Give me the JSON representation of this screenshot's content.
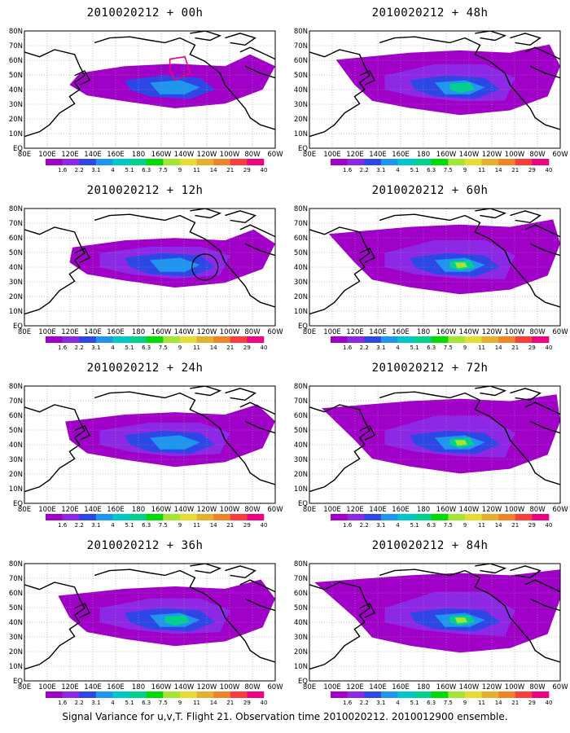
{
  "figure": {
    "caption": "Signal Variance for u,v,T. Flight 21. Observation time 2010020212. 2010012900 ensemble."
  },
  "axes": {
    "lon_labels": [
      "80E",
      "100E",
      "120E",
      "140E",
      "160E",
      "180",
      "160W",
      "140W",
      "120W",
      "100W",
      "80W",
      "60W"
    ],
    "lat_labels": [
      "EQ",
      "10N",
      "20N",
      "30N",
      "40N",
      "50N",
      "60N",
      "70N",
      "80N"
    ]
  },
  "colorbar": {
    "labels": [
      "1.6",
      "2.2",
      "3.1",
      "4",
      "5.1",
      "6.3",
      "7.5",
      "9",
      "11",
      "14",
      "21",
      "29",
      "40"
    ],
    "colors": [
      "#a000c8",
      "#8c28e6",
      "#2d47e6",
      "#1e96f0",
      "#00c8c8",
      "#00d28c",
      "#00dc00",
      "#a0e632",
      "#e6dc32",
      "#e6af2d",
      "#f08228",
      "#fa3c3c",
      "#f00082"
    ]
  },
  "panels": [
    {
      "id": "p00",
      "title": "2010020212 + 00h",
      "level": 0,
      "col": 0,
      "row": 0
    },
    {
      "id": "p12",
      "title": "2010020212 + 12h",
      "level": 1,
      "col": 0,
      "row": 1
    },
    {
      "id": "p24",
      "title": "2010020212 + 24h",
      "level": 2,
      "col": 0,
      "row": 2
    },
    {
      "id": "p36",
      "title": "2010020212 + 36h",
      "level": 3,
      "col": 0,
      "row": 3
    },
    {
      "id": "p48",
      "title": "2010020212 + 48h",
      "level": 4,
      "col": 1,
      "row": 0
    },
    {
      "id": "p60",
      "title": "2010020212 + 60h",
      "level": 5,
      "col": 1,
      "row": 1
    },
    {
      "id": "p72",
      "title": "2010020212 + 72h",
      "level": 6,
      "col": 1,
      "row": 2
    },
    {
      "id": "p84",
      "title": "2010020212 + 84h",
      "level": 7,
      "col": 1,
      "row": 3
    }
  ]
}
